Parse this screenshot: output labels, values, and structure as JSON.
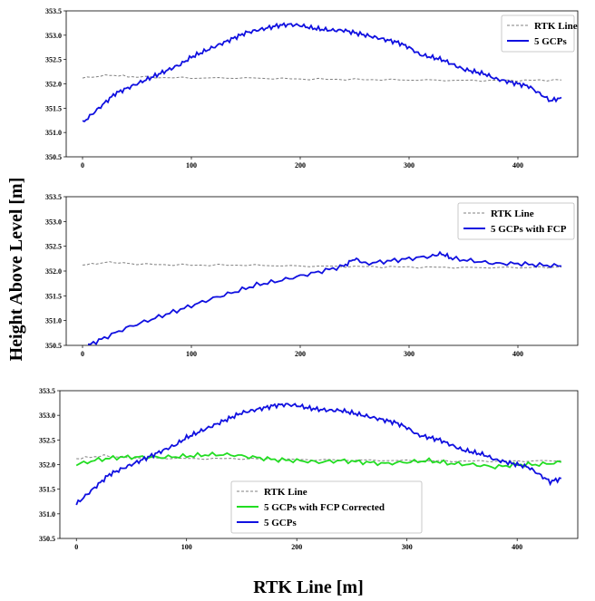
{
  "figure": {
    "ylabel": "Height Above Level [m]",
    "xlabel": "RTK Line [m]"
  },
  "chart_data": [
    {
      "type": "line",
      "xlim": [
        -15,
        455
      ],
      "ylim": [
        350.5,
        353.5
      ],
      "xticks": [
        0,
        100,
        200,
        300,
        400
      ],
      "yticks": [
        350.5,
        351.0,
        351.5,
        352.0,
        352.5,
        353.0,
        353.5
      ],
      "grid": false,
      "legend_position": "top-right",
      "series": [
        {
          "name": "RTK Line",
          "color": "#808080",
          "style": "dashed",
          "x": [
            0,
            25,
            50,
            100,
            150,
            200,
            250,
            300,
            350,
            400,
            440
          ],
          "y": [
            352.12,
            352.18,
            352.14,
            352.12,
            352.12,
            352.1,
            352.09,
            352.08,
            352.07,
            352.07,
            352.08
          ]
        },
        {
          "name": "5 GCPs",
          "color": "#1010e0",
          "style": "solid",
          "x": [
            0,
            10,
            20,
            30,
            40,
            50,
            60,
            70,
            80,
            90,
            100,
            110,
            120,
            130,
            140,
            150,
            160,
            170,
            180,
            190,
            200,
            210,
            220,
            230,
            240,
            250,
            260,
            270,
            280,
            290,
            300,
            310,
            320,
            330,
            340,
            350,
            360,
            370,
            380,
            390,
            400,
            410,
            420,
            430,
            440
          ],
          "y": [
            351.2,
            351.4,
            351.6,
            351.8,
            351.9,
            352.0,
            352.1,
            352.2,
            352.3,
            352.4,
            352.55,
            352.65,
            352.75,
            352.85,
            352.95,
            353.05,
            353.1,
            353.15,
            353.2,
            353.22,
            353.2,
            353.15,
            353.12,
            353.1,
            353.1,
            353.05,
            353.0,
            352.95,
            352.9,
            352.85,
            352.75,
            352.6,
            352.55,
            352.5,
            352.4,
            352.3,
            352.25,
            352.2,
            352.1,
            352.05,
            352.0,
            351.95,
            351.8,
            351.65,
            351.72
          ]
        }
      ]
    },
    {
      "type": "line",
      "xlim": [
        -15,
        455
      ],
      "ylim": [
        350.5,
        353.5
      ],
      "xticks": [
        0,
        100,
        200,
        300,
        400
      ],
      "yticks": [
        350.5,
        351.0,
        351.5,
        352.0,
        352.5,
        353.0,
        353.5
      ],
      "grid": false,
      "legend_position": "top-right",
      "series": [
        {
          "name": "RTK Line",
          "color": "#808080",
          "style": "dashed",
          "x": [
            0,
            25,
            50,
            100,
            150,
            200,
            250,
            300,
            350,
            400,
            440
          ],
          "y": [
            352.12,
            352.18,
            352.14,
            352.12,
            352.12,
            352.1,
            352.09,
            352.08,
            352.07,
            352.07,
            352.08
          ]
        },
        {
          "name": "5 GCPs with FCP",
          "color": "#1010e0",
          "style": "solid",
          "x": [
            5,
            20,
            40,
            60,
            80,
            100,
            120,
            140,
            160,
            180,
            200,
            220,
            240,
            250,
            260,
            280,
            300,
            320,
            330,
            340,
            360,
            380,
            400,
            420,
            440
          ],
          "y": [
            350.5,
            350.65,
            350.85,
            351.0,
            351.15,
            351.3,
            351.45,
            351.58,
            351.72,
            351.8,
            351.9,
            352.0,
            352.1,
            352.25,
            352.15,
            352.2,
            352.25,
            352.3,
            352.35,
            352.25,
            352.2,
            352.15,
            352.15,
            352.12,
            352.1
          ]
        }
      ]
    },
    {
      "type": "line",
      "xlim": [
        -15,
        455
      ],
      "ylim": [
        350.5,
        353.5
      ],
      "xticks": [
        0,
        100,
        200,
        300,
        400
      ],
      "yticks": [
        350.5,
        351.0,
        351.5,
        352.0,
        352.5,
        353.0,
        353.5
      ],
      "grid": false,
      "legend_position": "bottom-center",
      "series": [
        {
          "name": "RTK Line",
          "color": "#808080",
          "style": "dashed",
          "x": [
            0,
            25,
            50,
            100,
            150,
            200,
            250,
            300,
            350,
            400,
            440
          ],
          "y": [
            352.12,
            352.18,
            352.14,
            352.12,
            352.12,
            352.1,
            352.09,
            352.08,
            352.07,
            352.07,
            352.08
          ]
        },
        {
          "name": "5 GCPs with FCP Corrected",
          "color": "#22dd22",
          "style": "solid",
          "x": [
            0,
            20,
            40,
            60,
            80,
            100,
            120,
            140,
            160,
            180,
            200,
            220,
            240,
            260,
            280,
            300,
            320,
            340,
            360,
            380,
            400,
            420,
            440
          ],
          "y": [
            352.0,
            352.1,
            352.15,
            352.15,
            352.15,
            352.17,
            352.2,
            352.2,
            352.15,
            352.1,
            352.08,
            352.05,
            352.08,
            352.05,
            352.02,
            352.05,
            352.08,
            352.02,
            352.0,
            351.95,
            352.0,
            352.0,
            352.05
          ]
        },
        {
          "name": "5 GCPs",
          "color": "#1010e0",
          "style": "solid",
          "x": [
            0,
            10,
            20,
            30,
            40,
            50,
            60,
            70,
            80,
            90,
            100,
            110,
            120,
            130,
            140,
            150,
            160,
            170,
            180,
            190,
            200,
            210,
            220,
            230,
            240,
            250,
            260,
            270,
            280,
            290,
            300,
            310,
            320,
            330,
            340,
            350,
            360,
            370,
            380,
            390,
            400,
            410,
            420,
            430,
            440
          ],
          "y": [
            351.2,
            351.4,
            351.6,
            351.8,
            351.9,
            352.0,
            352.1,
            352.2,
            352.3,
            352.4,
            352.55,
            352.65,
            352.75,
            352.85,
            352.95,
            353.05,
            353.1,
            353.15,
            353.2,
            353.22,
            353.2,
            353.15,
            353.12,
            353.1,
            353.1,
            353.05,
            353.0,
            352.95,
            352.9,
            352.85,
            352.75,
            352.6,
            352.55,
            352.5,
            352.4,
            352.3,
            352.25,
            352.2,
            352.1,
            352.05,
            352.0,
            351.95,
            351.8,
            351.65,
            351.72
          ]
        }
      ]
    }
  ]
}
